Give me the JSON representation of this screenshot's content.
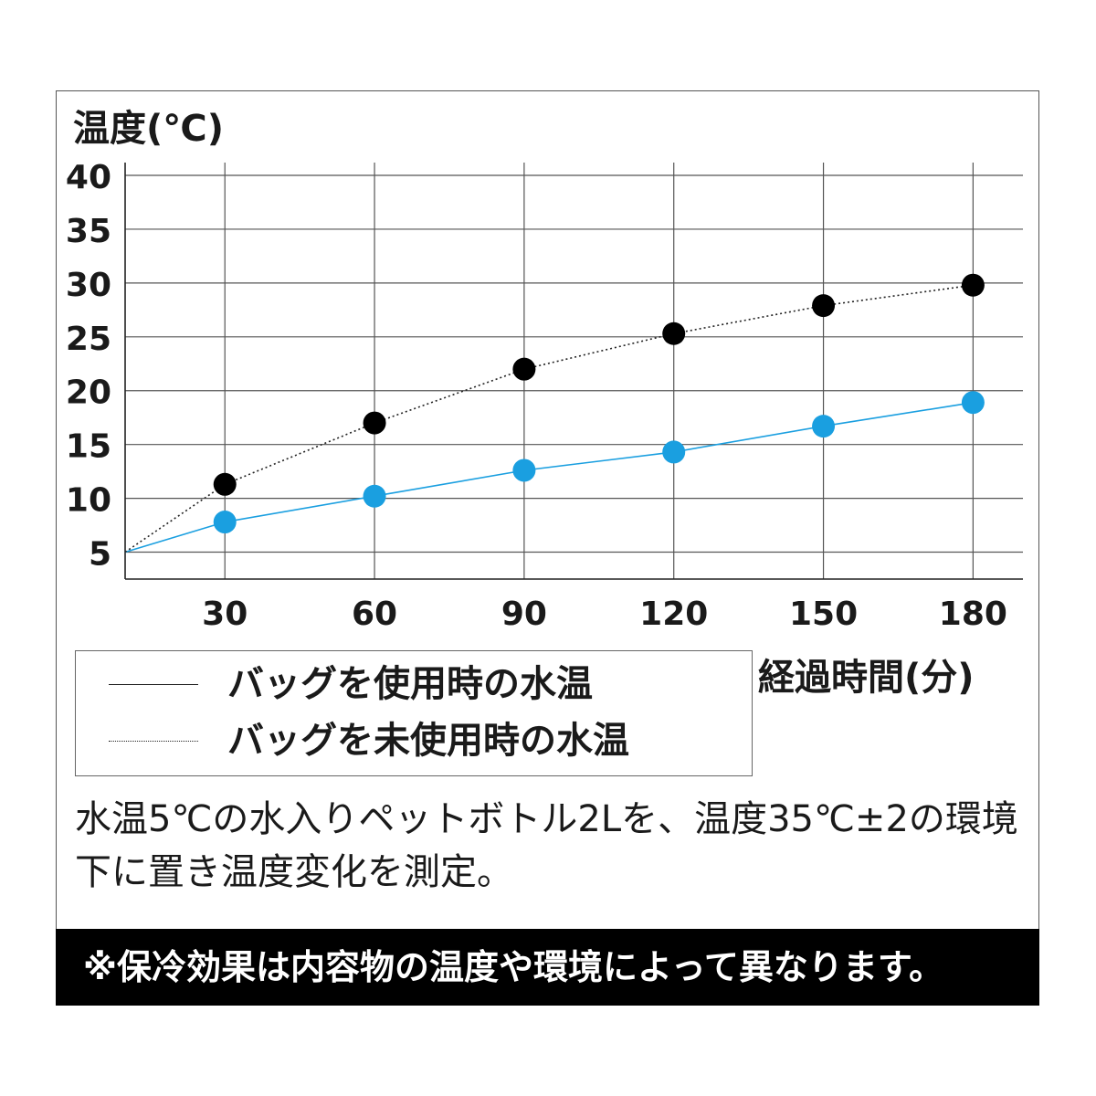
{
  "chart_data": {
    "type": "line",
    "title": "",
    "ylabel": "温度(℃)",
    "xlabel": "経過時間(分)",
    "x_ticks": [
      30,
      60,
      90,
      120,
      150,
      180
    ],
    "y_ticks": [
      5,
      10,
      15,
      20,
      25,
      30,
      35,
      40
    ],
    "xlim": [
      10,
      190
    ],
    "ylim": [
      2.5,
      40
    ],
    "grid": true,
    "legend_position": "bottom-left",
    "series": [
      {
        "name": "バッグを使用時の水温",
        "style": "solid",
        "color": "#1a9fe0",
        "marker_color": "#1a9fe0",
        "start": {
          "x": 10,
          "y": 5
        },
        "x": [
          30,
          60,
          90,
          120,
          150,
          180
        ],
        "y": [
          7.8,
          10.2,
          12.6,
          14.3,
          16.7,
          18.9
        ]
      },
      {
        "name": "バッグを未使用時の水温",
        "style": "dotted",
        "color": "#222222",
        "marker_color": "#000000",
        "start": {
          "x": 10,
          "y": 5
        },
        "x": [
          30,
          60,
          90,
          120,
          150,
          180
        ],
        "y": [
          11.3,
          17.0,
          22.0,
          25.3,
          27.9,
          29.8
        ]
      }
    ]
  },
  "legend": {
    "items": [
      {
        "label": "バッグを使用時の水温",
        "style": "solid"
      },
      {
        "label": "バッグを未使用時の水温",
        "style": "dotted"
      }
    ]
  },
  "note": "水温5℃の水入りペットボトル2Lを、温度35℃±2の環境下に置き温度変化を測定。",
  "banner": "※保冷効果は内容物の温度や環境によって異なります。"
}
